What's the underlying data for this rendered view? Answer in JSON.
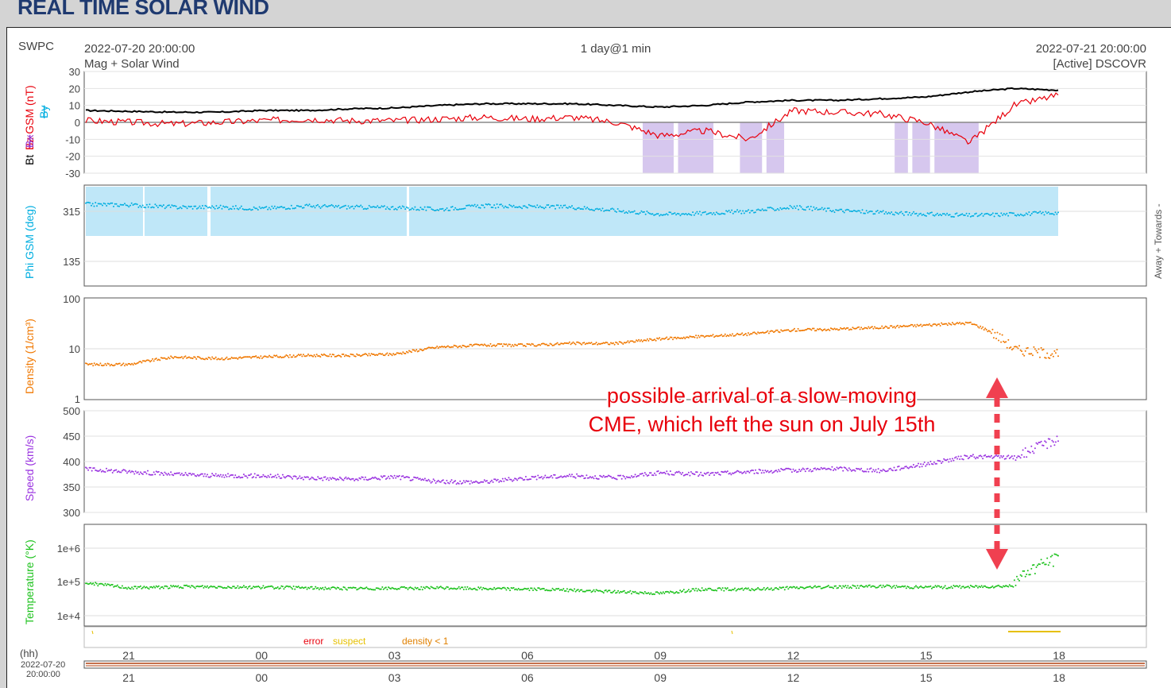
{
  "page": {
    "title": "REAL TIME SOLAR WIND"
  },
  "header": {
    "agency": "SWPC",
    "start_time": "2022-07-20 20:00:00",
    "subtitle": "Mag + Solar Wind",
    "resolution": "1 day@1 min",
    "end_time": "2022-07-21 20:00:00",
    "source": "[Active] DSCOVR"
  },
  "annotation": {
    "line1": "possible arrival of a slow-moving",
    "line2": "CME, which left the sun on July 15th"
  },
  "legend": {
    "error": "error",
    "suspect": "suspect",
    "density": "density < 1"
  },
  "time_axis": {
    "unit_label": "(hh)",
    "start_label_line1": "2022-07-20",
    "start_label_line2": "20:00:00",
    "ticks": [
      "21",
      "00",
      "03",
      "06",
      "09",
      "12",
      "15",
      "18"
    ]
  },
  "colors": {
    "bt": "#000000",
    "bz": "#e8000b",
    "by": "#00aee0",
    "bx": "#9933cc",
    "phi": "#00aee0",
    "phi_band": "#bfe7f8",
    "bz_fill": "#d6c7ee",
    "density": "#f07800",
    "speed": "#9a33e0",
    "temperature": "#1cc21c",
    "annotation_text": "#e8000b",
    "arrow": "#f04050",
    "suspect": "#e6c000",
    "density_flag": "#e08000",
    "error": "#e8000b"
  },
  "chart_data": [
    {
      "type": "line",
      "panel": "magnetic-field",
      "ylabel_bt": "Bt",
      "ylabel_bz": "Bz GSM (nT)",
      "ylabel_by": "By",
      "ylabel_bx": "Bx",
      "yticks": [
        "30",
        "20",
        "10",
        "0",
        "-10",
        "-20",
        "-30"
      ],
      "ylim": [
        -30,
        30
      ],
      "x_hours": [
        0,
        1,
        2,
        3,
        4,
        5,
        6,
        7,
        8,
        9,
        10,
        11,
        12,
        13,
        14,
        15,
        16,
        17,
        18,
        19,
        20,
        21,
        22
      ],
      "series": [
        {
          "name": "Bt",
          "values": [
            7,
            6.5,
            6,
            6,
            7,
            7,
            8,
            8.5,
            10,
            11,
            11,
            11,
            10,
            9,
            10,
            12,
            13,
            13,
            14,
            15,
            18,
            20,
            19
          ]
        },
        {
          "name": "Bz",
          "values": [
            1,
            0,
            -1,
            0,
            1,
            2,
            1,
            1,
            2,
            3,
            2,
            3,
            0,
            -8,
            -5,
            -10,
            7,
            6,
            5,
            0,
            -12,
            10,
            16
          ]
        }
      ]
    },
    {
      "type": "scatter",
      "panel": "phi",
      "ylabel": "Phi GSM (deg)",
      "ylabel_right": "Away + Towards -",
      "yticks": [
        "315",
        "135"
      ],
      "band": [
        270,
        360
      ],
      "x_hours": [
        0,
        1,
        2,
        3,
        4,
        5,
        6,
        7,
        8,
        9,
        10,
        11,
        12,
        13,
        14,
        15,
        16,
        17,
        18,
        19,
        20,
        21,
        22
      ],
      "values": [
        340,
        338,
        330,
        330,
        325,
        334,
        330,
        328,
        322,
        335,
        332,
        330,
        318,
        305,
        308,
        315,
        330,
        318,
        310,
        305,
        300,
        305,
        310
      ]
    },
    {
      "type": "line",
      "panel": "density",
      "ylabel": "Density (1/cm³)",
      "scale": "log",
      "yticks": [
        "100",
        "10",
        "1"
      ],
      "x_hours": [
        0,
        1,
        2,
        3,
        4,
        5,
        6,
        7,
        8,
        9,
        10,
        11,
        12,
        13,
        14,
        15,
        16,
        17,
        18,
        19,
        20,
        21,
        22
      ],
      "values": [
        5,
        5,
        7,
        6.5,
        7,
        7.5,
        7.5,
        8,
        11,
        12,
        12,
        13,
        13,
        16,
        18,
        20,
        24,
        25,
        27,
        30,
        33,
        10,
        8
      ]
    },
    {
      "type": "scatter",
      "panel": "speed",
      "ylabel": "Speed (km/s)",
      "yticks": [
        "500",
        "450",
        "400",
        "350",
        "300"
      ],
      "ylim": [
        300,
        500
      ],
      "x_hours": [
        0,
        1,
        2,
        3,
        4,
        5,
        6,
        7,
        8,
        9,
        10,
        11,
        12,
        13,
        14,
        15,
        16,
        17,
        18,
        19,
        20,
        21,
        22
      ],
      "values": [
        385,
        380,
        375,
        372,
        372,
        368,
        365,
        370,
        360,
        360,
        368,
        372,
        368,
        378,
        375,
        380,
        383,
        386,
        382,
        395,
        410,
        408,
        445
      ]
    },
    {
      "type": "scatter",
      "panel": "temperature",
      "ylabel": "Temperature (°K)",
      "scale": "log",
      "yticks": [
        "1e+6",
        "1e+5",
        "1e+4"
      ],
      "x_hours": [
        0,
        1,
        2,
        3,
        4,
        5,
        6,
        7,
        8,
        9,
        10,
        11,
        12,
        13,
        14,
        15,
        16,
        17,
        18,
        19,
        20,
        21,
        22
      ],
      "values": [
        90000,
        65000,
        70000,
        70000,
        68000,
        65000,
        62000,
        63000,
        65000,
        62000,
        60000,
        55000,
        50000,
        45000,
        60000,
        58000,
        65000,
        70000,
        72000,
        68000,
        70000,
        75000,
        500000
      ]
    }
  ]
}
